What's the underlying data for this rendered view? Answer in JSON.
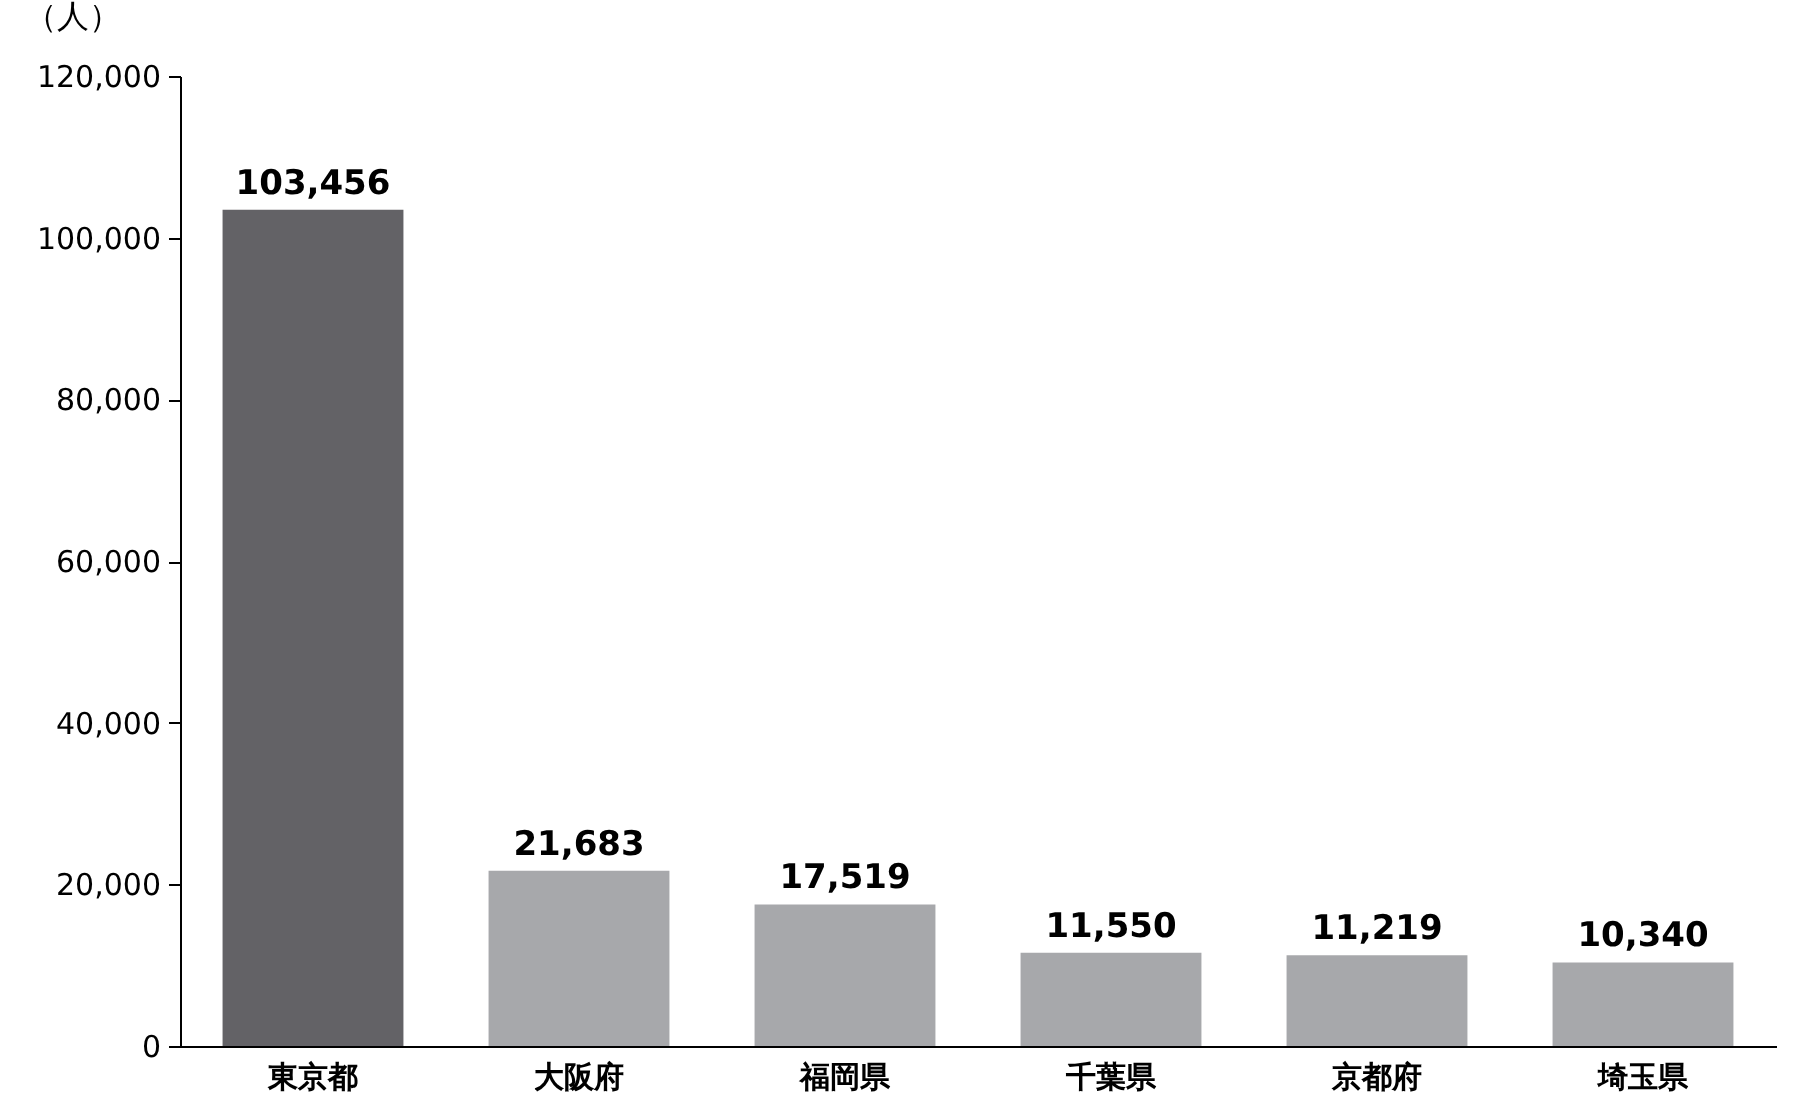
{
  "chart_data": {
    "type": "bar",
    "ylabel": "（人）",
    "categories": [
      "東京都",
      "大阪府",
      "福岡県",
      "千葉県",
      "京都府",
      "埼玉県"
    ],
    "values": [
      103456,
      21683,
      17519,
      11550,
      11219,
      10340
    ],
    "value_labels": [
      "103,456",
      "21,683",
      "17,519",
      "11,550",
      "11,219",
      "10,340"
    ],
    "colors": [
      "#636266",
      "#a7a8ab",
      "#a7a8ab",
      "#a7a8ab",
      "#a7a8ab",
      "#a7a8ab"
    ],
    "ylim": [
      0,
      120000
    ],
    "yticks": [
      0,
      {
        "value": 20000,
        "label": "20,000"
      },
      {
        "value": 40000,
        "label": "40,000"
      },
      {
        "value": 60000,
        "label": "60,000"
      },
      {
        "value": 80000,
        "label": "80,000"
      },
      {
        "value": 100000,
        "label": "100,000"
      },
      {
        "value": 120000,
        "label": "120,000"
      }
    ],
    "grid": false,
    "legend": false
  }
}
